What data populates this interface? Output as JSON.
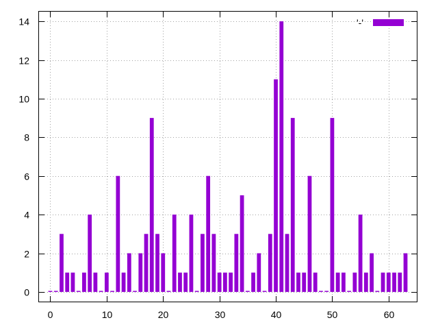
{
  "chart_data": {
    "type": "bar",
    "title": "",
    "xlabel": "",
    "ylabel": "",
    "xlim": [
      -2,
      65
    ],
    "ylim": [
      -0.5,
      14.5
    ],
    "x_ticks": [
      0,
      10,
      20,
      30,
      40,
      50,
      60
    ],
    "y_ticks": [
      0,
      2,
      4,
      6,
      8,
      10,
      12,
      14
    ],
    "grid": true,
    "legend": {
      "label": "'-'",
      "placement": "top-right"
    },
    "colors": {
      "bar": "#9400d3"
    },
    "series": [
      {
        "x": [
          0,
          1,
          2,
          3,
          4,
          5,
          6,
          7,
          8,
          9,
          10,
          11,
          12,
          13,
          14,
          15,
          16,
          17,
          18,
          19,
          20,
          21,
          22,
          23,
          24,
          25,
          26,
          27,
          28,
          29,
          30,
          31,
          32,
          33,
          34,
          35,
          36,
          37,
          38,
          39,
          40,
          41,
          42,
          43,
          44,
          45,
          46,
          47,
          48,
          49,
          50,
          51,
          52,
          53,
          54,
          55,
          56,
          57,
          58,
          59,
          60,
          61,
          62,
          63
        ],
        "values": [
          0,
          0,
          3,
          1,
          1,
          0,
          1,
          4,
          1,
          0,
          1,
          0,
          6,
          1,
          2,
          0,
          2,
          3,
          9,
          3,
          2,
          0,
          4,
          1,
          1,
          4,
          0,
          3,
          6,
          3,
          1,
          1,
          1,
          3,
          5,
          0,
          1,
          2,
          0,
          3,
          11,
          14,
          3,
          9,
          1,
          1,
          6,
          1,
          0,
          0,
          9,
          1,
          1,
          0,
          1,
          4,
          1,
          2,
          0,
          1,
          1,
          1,
          1,
          2
        ]
      }
    ]
  }
}
